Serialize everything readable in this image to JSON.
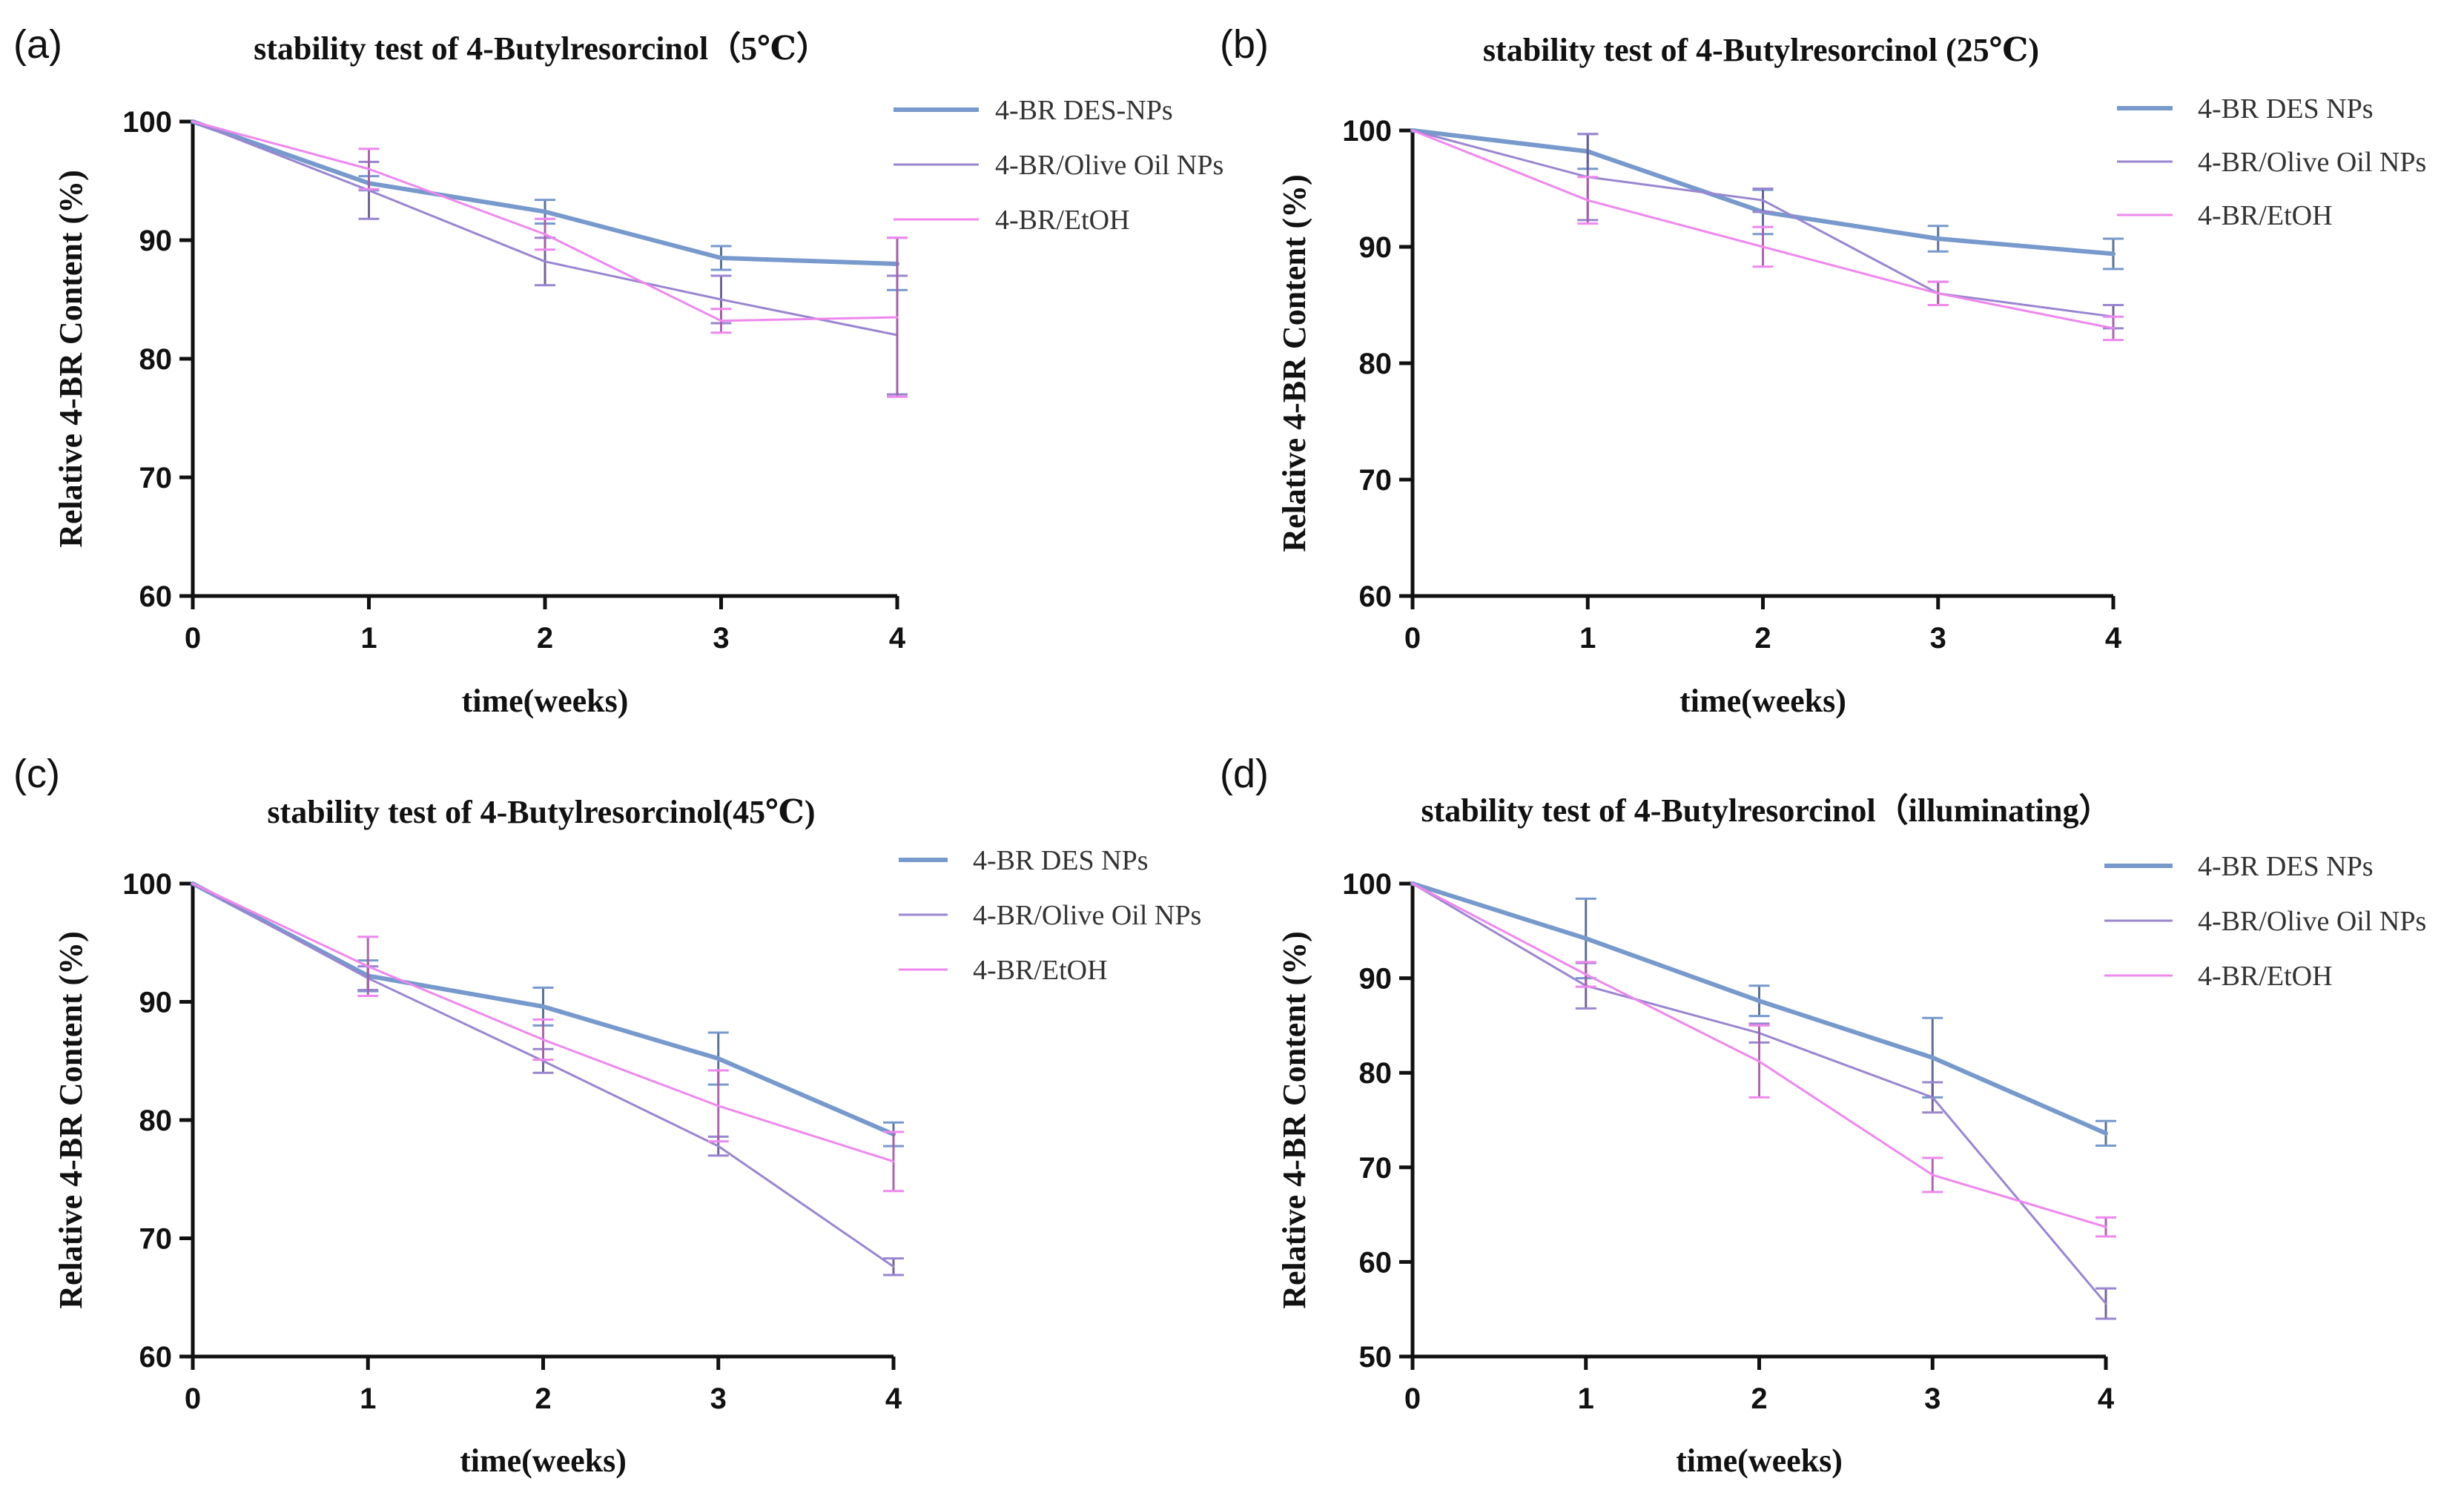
{
  "figure": {
    "xlabel": "time(weeks)",
    "ylabel": "Relative 4-BR Content (%)"
  },
  "chart_data": [
    {
      "panel": "(a)",
      "type": "line",
      "title": "stability test of 4-Butylresorcinol（5℃）",
      "xlabel": "time(weeks)",
      "ylabel": "Relative 4-BR Content (%)",
      "x": [
        0,
        1,
        2,
        3,
        4
      ],
      "xticks": [
        0,
        1,
        2,
        3,
        4
      ],
      "yticks": [
        60,
        70,
        80,
        90,
        100
      ],
      "xlim": [
        0,
        4
      ],
      "ylim": [
        60,
        100
      ],
      "series": [
        {
          "name": "4-BR DES-NPs",
          "color": "#7799cc",
          "width": 6,
          "values": [
            100,
            94.8,
            92.4,
            88.5,
            88.0
          ],
          "errors": [
            0,
            0.6,
            1.0,
            1.0,
            2.2
          ]
        },
        {
          "name": "4-BR/Olive Oil NPs",
          "color": "#9a86d0",
          "width": 3,
          "values": [
            100,
            94.2,
            88.2,
            85.0,
            82.0
          ],
          "errors": [
            0,
            2.4,
            2.0,
            2.0,
            5.0
          ]
        },
        {
          "name": "4-BR/EtOH",
          "color": "#ee88ee",
          "width": 3,
          "values": [
            100,
            96.0,
            90.5,
            83.2,
            83.5
          ],
          "errors": [
            0,
            1.7,
            1.3,
            1.0,
            6.7
          ]
        }
      ]
    },
    {
      "panel": "(b)",
      "type": "line",
      "title": "stability test of 4-Butylresorcinol (25℃)",
      "xlabel": "time(weeks)",
      "ylabel": "Relative 4-BR Content (%)",
      "x": [
        0,
        1,
        2,
        3,
        4
      ],
      "xticks": [
        0,
        1,
        2,
        3,
        4
      ],
      "yticks": [
        60,
        70,
        80,
        90,
        100
      ],
      "xlim": [
        0,
        4
      ],
      "ylim": [
        60,
        100
      ],
      "series": [
        {
          "name": "4-BR DES NPs",
          "color": "#7799cc",
          "width": 6,
          "values": [
            100,
            98.2,
            93.0,
            90.7,
            89.4
          ],
          "errors": [
            0,
            1.5,
            1.9,
            1.1,
            1.3
          ]
        },
        {
          "name": "4-BR/Olive Oil NPs",
          "color": "#9a86d0",
          "width": 3,
          "values": [
            100,
            96.0,
            94.0,
            86.0,
            84.0
          ],
          "errors": [
            0,
            3.7,
            1.0,
            1.0,
            1.0
          ]
        },
        {
          "name": "4-BR/EtOH",
          "color": "#ee88ee",
          "width": 3,
          "values": [
            100,
            94.0,
            90.0,
            86.0,
            83.0
          ],
          "errors": [
            0,
            2.0,
            1.7,
            1.0,
            1.0
          ]
        }
      ]
    },
    {
      "panel": "(c)",
      "type": "line",
      "title": "stability test of 4-Butylresorcinol(45℃)",
      "xlabel": "time(weeks)",
      "ylabel": "Relative 4-BR Content (%)",
      "x": [
        0,
        1,
        2,
        3,
        4
      ],
      "xticks": [
        0,
        1,
        2,
        3,
        4
      ],
      "yticks": [
        60,
        70,
        80,
        90,
        100
      ],
      "xlim": [
        0,
        4
      ],
      "ylim": [
        60,
        100
      ],
      "series": [
        {
          "name": "4-BR DES NPs",
          "color": "#7799cc",
          "width": 6,
          "values": [
            100,
            92.2,
            89.6,
            85.2,
            78.8
          ],
          "errors": [
            0,
            1.3,
            1.6,
            2.2,
            1.0
          ]
        },
        {
          "name": "4-BR/Olive Oil NPs",
          "color": "#9a86d0",
          "width": 3,
          "values": [
            100,
            92.0,
            85.0,
            77.8,
            67.6
          ],
          "errors": [
            0,
            1.0,
            1.0,
            0.8,
            0.7
          ]
        },
        {
          "name": "4-BR/EtOH",
          "color": "#ee88ee",
          "width": 3,
          "values": [
            100,
            93.0,
            86.8,
            81.2,
            76.5
          ],
          "errors": [
            0,
            2.5,
            1.7,
            3.0,
            2.5
          ]
        }
      ]
    },
    {
      "panel": "(d)",
      "type": "line",
      "title": "stability test of 4-Butylresorcinol（illuminating）",
      "xlabel": "time(weeks)",
      "ylabel": "Relative 4-BR Content (%)",
      "x": [
        0,
        1,
        2,
        3,
        4
      ],
      "xticks": [
        0,
        1,
        2,
        3,
        4
      ],
      "yticks": [
        50,
        60,
        70,
        80,
        90,
        100
      ],
      "xlim": [
        0,
        4
      ],
      "ylim": [
        50,
        100
      ],
      "series": [
        {
          "name": "4-BR DES NPs",
          "color": "#7799cc",
          "width": 6,
          "values": [
            100,
            94.2,
            87.6,
            81.6,
            73.6
          ],
          "errors": [
            0,
            4.2,
            1.6,
            4.2,
            1.3
          ]
        },
        {
          "name": "4-BR/Olive Oil NPs",
          "color": "#9a86d0",
          "width": 3,
          "values": [
            100,
            89.2,
            84.2,
            77.4,
            55.6
          ],
          "errors": [
            0,
            2.4,
            1.0,
            1.6,
            1.6
          ]
        },
        {
          "name": "4-BR/EtOH",
          "color": "#ee88ee",
          "width": 3,
          "values": [
            100,
            90.4,
            81.2,
            69.2,
            63.7
          ],
          "errors": [
            0,
            1.3,
            3.8,
            1.8,
            1.0
          ]
        }
      ]
    }
  ]
}
